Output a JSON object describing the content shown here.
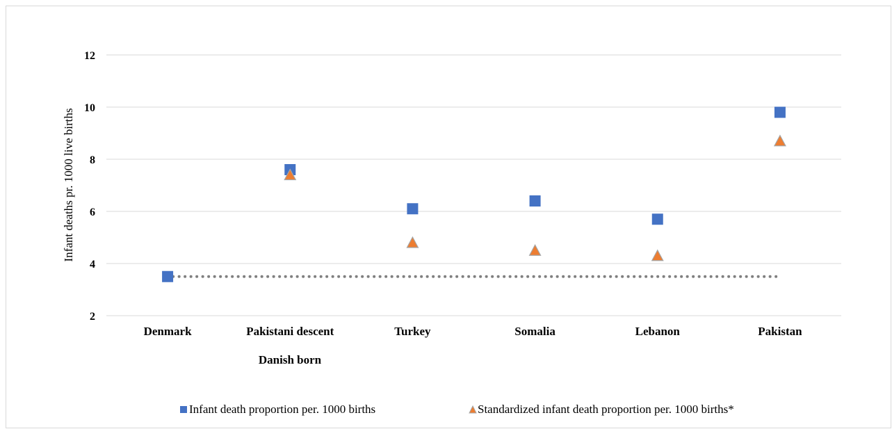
{
  "chart_data": {
    "type": "scatter",
    "categories": [
      "Denmark",
      "Pakistani descent",
      "Turkey",
      "Somalia",
      "Lebanon",
      "Pakistan"
    ],
    "category_sublabel": "Danish born",
    "ylabel": "Infant deaths pr. 1000 live births",
    "ylim": [
      2,
      12
    ],
    "yticks": [
      2,
      4,
      6,
      8,
      10,
      12
    ],
    "grid": true,
    "legend_position": "bottom",
    "series": [
      {
        "name": "Infant death proportion per. 1000 births",
        "marker": "square",
        "color": "#4472C4",
        "values": [
          3.5,
          7.6,
          6.1,
          6.4,
          5.7,
          9.8
        ]
      },
      {
        "name": "Standardized infant death proportion per. 1000 births*",
        "marker": "triangle",
        "color": "#ED7D31",
        "values": [
          null,
          7.4,
          4.8,
          4.5,
          4.3,
          8.7
        ]
      }
    ],
    "reference_line": {
      "y": 3.5,
      "style": "dotted",
      "color": "#7f7f7f"
    }
  }
}
